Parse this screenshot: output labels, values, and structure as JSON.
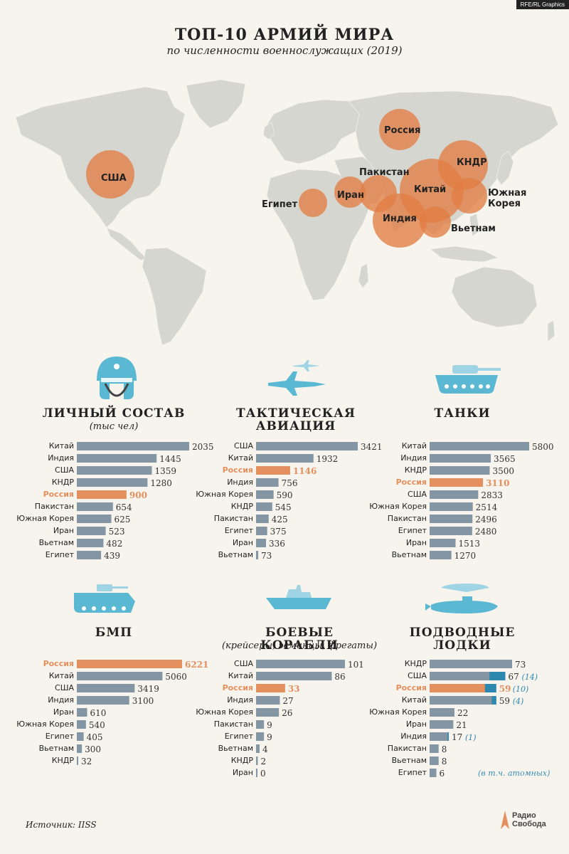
{
  "header": {
    "credit": "RFE/RL Graphics",
    "title": "ТОП-10 АРМИЙ МИРА",
    "subtitle": "по численности военнослужащих (2019)"
  },
  "map": {
    "land_color": "#d6d6d0",
    "bubble_color": "#e27e44",
    "countries": [
      {
        "name": "США"
      },
      {
        "name": "Россия"
      },
      {
        "name": "Египет"
      },
      {
        "name": "Иран"
      },
      {
        "name": "Пакистан"
      },
      {
        "name": "Китай"
      },
      {
        "name": "КНДР"
      },
      {
        "name": "Южная Корея"
      },
      {
        "name": "Индия"
      },
      {
        "name": "Вьетнам"
      }
    ]
  },
  "colors": {
    "bar": "#8496a3",
    "highlight": "#e48f5e",
    "nuclear": "#2d88b0",
    "icon": "#5ab8d2"
  },
  "chart_data": [
    {
      "type": "bar",
      "title": "ЛИЧНЫЙ СОСТАВ",
      "subtitle": "(тыс чел)",
      "highlight": "Россия",
      "categories": [
        "Китай",
        "Индия",
        "США",
        "КНДР",
        "Россия",
        "Пакистан",
        "Южная Корея",
        "Иран",
        "Вьетнам",
        "Египет"
      ],
      "values": [
        2035,
        1445,
        1359,
        1280,
        900,
        654,
        625,
        523,
        482,
        439
      ]
    },
    {
      "type": "bar",
      "title": "ТАКТИЧЕСКАЯ АВИАЦИЯ",
      "subtitle": "",
      "highlight": "Россия",
      "categories": [
        "США",
        "Китай",
        "Россия",
        "Индия",
        "Южная Корея",
        "КНДР",
        "Пакистан",
        "Египет",
        "Иран",
        "Вьетнам"
      ],
      "values": [
        3421,
        1932,
        1146,
        756,
        590,
        545,
        425,
        375,
        336,
        73
      ]
    },
    {
      "type": "bar",
      "title": "ТАНКИ",
      "subtitle": "",
      "highlight": "Россия",
      "categories": [
        "Китай",
        "Индия",
        "КНДР",
        "Россия",
        "США",
        "Южная Корея",
        "Пакистан",
        "Египет",
        "Иран",
        "Вьетнам"
      ],
      "values": [
        5800,
        3565,
        3500,
        3110,
        2833,
        2514,
        2496,
        2480,
        1513,
        1270
      ]
    },
    {
      "type": "bar",
      "title": "БМП",
      "subtitle": "",
      "highlight": "Россия",
      "categories": [
        "Россия",
        "Китай",
        "США",
        "Индия",
        "Иран",
        "Южная Корея",
        "Египет",
        "Вьетнам",
        "КНДР"
      ],
      "values": [
        6221,
        5060,
        3419,
        3100,
        610,
        540,
        405,
        300,
        32
      ]
    },
    {
      "type": "bar",
      "title": "БОЕВЫЕ КОРАБЛИ",
      "subtitle": "(крейсеры, эсминцы, фрегаты)",
      "highlight": "Россия",
      "categories": [
        "США",
        "Китай",
        "Россия",
        "Индия",
        "Южная Корея",
        "Пакистан",
        "Египет",
        "Вьетнам",
        "КНДР",
        "Иран"
      ],
      "values": [
        101,
        86,
        33,
        27,
        26,
        9,
        9,
        4,
        2,
        0
      ]
    },
    {
      "type": "bar",
      "title": "ПОДВОДНЫЕ ЛОДКИ",
      "subtitle": "",
      "highlight": "Россия",
      "note": "(в т.ч. атомных)",
      "categories": [
        "КНДР",
        "США",
        "Россия",
        "Китай",
        "Южная Корея",
        "Иран",
        "Индия",
        "Пакистан",
        "Вьетнам",
        "Египет"
      ],
      "values": [
        73,
        67,
        59,
        59,
        22,
        21,
        17,
        8,
        8,
        6
      ],
      "nuclear": [
        0,
        14,
        10,
        4,
        0,
        0,
        1,
        0,
        0,
        0
      ],
      "nuclear_labels": [
        "",
        "(14)",
        "(10)",
        "(4)",
        "",
        "",
        "(1)",
        "",
        "",
        ""
      ]
    }
  ],
  "footer": {
    "source": "Источник: IISS",
    "logo_line1": "Радио",
    "logo_line2": "Свобода"
  }
}
